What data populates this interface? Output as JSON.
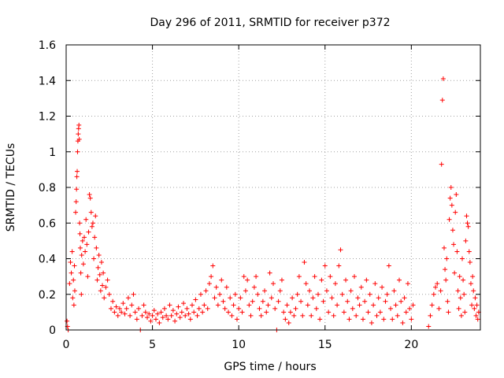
{
  "chart_data": {
    "type": "scatter",
    "title": "Day 296 of 2011, SRMTID for receiver p372",
    "xlabel": "GPS time / hours",
    "ylabel": "SRMTID / TECUs",
    "xlim": [
      0,
      24
    ],
    "ylim": [
      0,
      1.6
    ],
    "x_ticks": [
      0,
      5,
      10,
      15,
      20
    ],
    "x_tick_labels": [
      "0",
      "5",
      "10",
      "15",
      "20"
    ],
    "y_ticks": [
      0,
      0.2,
      0.4,
      0.6,
      0.8,
      1,
      1.2,
      1.4,
      1.6
    ],
    "y_tick_labels": [
      "0",
      "0.2",
      "0.4",
      "0.6",
      "0.8",
      "1",
      "1.2",
      "1.4",
      "1.6"
    ],
    "grid": true,
    "marker": "+",
    "color": "#ff0000",
    "series": [
      {
        "name": "SRMTID",
        "points": [
          [
            0.05,
            0.05
          ],
          [
            0.08,
            0.02
          ],
          [
            0.12,
            0.0
          ],
          [
            0.2,
            0.26
          ],
          [
            0.25,
            0.38
          ],
          [
            0.3,
            0.32
          ],
          [
            0.35,
            0.44
          ],
          [
            0.38,
            0.18
          ],
          [
            0.42,
            0.28
          ],
          [
            0.45,
            0.14
          ],
          [
            0.48,
            0.36
          ],
          [
            0.5,
            0.22
          ],
          [
            0.55,
            0.66
          ],
          [
            0.58,
            0.72
          ],
          [
            0.6,
            0.79
          ],
          [
            0.62,
            0.86
          ],
          [
            0.64,
            0.89
          ],
          [
            0.66,
            1.0
          ],
          [
            0.68,
            1.06
          ],
          [
            0.7,
            1.1
          ],
          [
            0.72,
            1.13
          ],
          [
            0.74,
            1.15
          ],
          [
            0.76,
            1.07
          ],
          [
            0.78,
            0.6
          ],
          [
            0.8,
            0.54
          ],
          [
            0.82,
            0.46
          ],
          [
            0.85,
            0.32
          ],
          [
            0.88,
            0.2
          ],
          [
            0.9,
            0.42
          ],
          [
            0.95,
            0.5
          ],
          [
            1.0,
            0.37
          ],
          [
            1.05,
            0.52
          ],
          [
            1.1,
            0.44
          ],
          [
            1.15,
            0.62
          ],
          [
            1.2,
            0.48
          ],
          [
            1.25,
            0.3
          ],
          [
            1.3,
            0.55
          ],
          [
            1.35,
            0.76
          ],
          [
            1.4,
            0.74
          ],
          [
            1.45,
            0.66
          ],
          [
            1.5,
            0.58
          ],
          [
            1.55,
            0.6
          ],
          [
            1.6,
            0.4
          ],
          [
            1.65,
            0.52
          ],
          [
            1.7,
            0.64
          ],
          [
            1.75,
            0.46
          ],
          [
            1.8,
            0.28
          ],
          [
            1.85,
            0.35
          ],
          [
            1.9,
            0.42
          ],
          [
            1.95,
            0.31
          ],
          [
            2.0,
            0.22
          ],
          [
            2.05,
            0.38
          ],
          [
            2.1,
            0.25
          ],
          [
            2.15,
            0.32
          ],
          [
            2.2,
            0.18
          ],
          [
            2.3,
            0.24
          ],
          [
            2.4,
            0.28
          ],
          [
            2.5,
            0.2
          ],
          [
            2.6,
            0.12
          ],
          [
            2.7,
            0.16
          ],
          [
            2.8,
            0.1
          ],
          [
            2.9,
            0.13
          ],
          [
            3.0,
            0.08
          ],
          [
            3.1,
            0.12
          ],
          [
            3.2,
            0.1
          ],
          [
            3.3,
            0.15
          ],
          [
            3.4,
            0.09
          ],
          [
            3.5,
            0.12
          ],
          [
            3.6,
            0.18
          ],
          [
            3.7,
            0.08
          ],
          [
            3.8,
            0.14
          ],
          [
            3.9,
            0.2
          ],
          [
            4.0,
            0.1
          ],
          [
            4.1,
            0.06
          ],
          [
            4.2,
            0.12
          ],
          [
            4.3,
            0.0
          ],
          [
            4.4,
            0.08
          ],
          [
            4.5,
            0.14
          ],
          [
            4.6,
            0.1
          ],
          [
            4.7,
            0.07
          ],
          [
            4.8,
            0.09
          ],
          [
            4.9,
            0.05
          ],
          [
            5.0,
            0.08
          ],
          [
            5.1,
            0.11
          ],
          [
            5.2,
            0.06
          ],
          [
            5.3,
            0.09
          ],
          [
            5.4,
            0.04
          ],
          [
            5.5,
            0.1
          ],
          [
            5.6,
            0.07
          ],
          [
            5.7,
            0.12
          ],
          [
            5.8,
            0.08
          ],
          [
            5.9,
            0.06
          ],
          [
            6.0,
            0.14
          ],
          [
            6.1,
            0.08
          ],
          [
            6.2,
            0.11
          ],
          [
            6.3,
            0.05
          ],
          [
            6.4,
            0.09
          ],
          [
            6.5,
            0.13
          ],
          [
            6.6,
            0.07
          ],
          [
            6.7,
            0.1
          ],
          [
            6.8,
            0.15
          ],
          [
            6.9,
            0.08
          ],
          [
            7.0,
            0.12
          ],
          [
            7.1,
            0.09
          ],
          [
            7.2,
            0.06
          ],
          [
            7.3,
            0.14
          ],
          [
            7.4,
            0.1
          ],
          [
            7.5,
            0.17
          ],
          [
            7.6,
            0.08
          ],
          [
            7.7,
            0.12
          ],
          [
            7.8,
            0.2
          ],
          [
            7.9,
            0.1
          ],
          [
            8.0,
            0.14
          ],
          [
            8.1,
            0.22
          ],
          [
            8.2,
            0.12
          ],
          [
            8.3,
            0.26
          ],
          [
            8.4,
            0.3
          ],
          [
            8.5,
            0.36
          ],
          [
            8.6,
            0.18
          ],
          [
            8.7,
            0.24
          ],
          [
            8.8,
            0.14
          ],
          [
            8.9,
            0.2
          ],
          [
            9.0,
            0.28
          ],
          [
            9.1,
            0.16
          ],
          [
            9.2,
            0.12
          ],
          [
            9.3,
            0.24
          ],
          [
            9.4,
            0.1
          ],
          [
            9.5,
            0.18
          ],
          [
            9.6,
            0.08
          ],
          [
            9.7,
            0.14
          ],
          [
            9.8,
            0.2
          ],
          [
            9.9,
            0.06
          ],
          [
            10.0,
            0.12
          ],
          [
            10.1,
            0.18
          ],
          [
            10.2,
            0.1
          ],
          [
            10.3,
            0.3
          ],
          [
            10.4,
            0.22
          ],
          [
            10.5,
            0.28
          ],
          [
            10.6,
            0.14
          ],
          [
            10.7,
            0.08
          ],
          [
            10.8,
            0.16
          ],
          [
            10.9,
            0.24
          ],
          [
            11.0,
            0.3
          ],
          [
            11.1,
            0.2
          ],
          [
            11.2,
            0.12
          ],
          [
            11.3,
            0.08
          ],
          [
            11.4,
            0.16
          ],
          [
            11.5,
            0.22
          ],
          [
            11.6,
            0.1
          ],
          [
            11.7,
            0.14
          ],
          [
            11.8,
            0.32
          ],
          [
            11.9,
            0.18
          ],
          [
            12.0,
            0.26
          ],
          [
            12.1,
            0.12
          ],
          [
            12.2,
            0.0
          ],
          [
            12.3,
            0.16
          ],
          [
            12.4,
            0.22
          ],
          [
            12.5,
            0.28
          ],
          [
            12.6,
            0.1
          ],
          [
            12.7,
            0.06
          ],
          [
            12.8,
            0.14
          ],
          [
            12.9,
            0.04
          ],
          [
            13.0,
            0.1
          ],
          [
            13.1,
            0.18
          ],
          [
            13.2,
            0.08
          ],
          [
            13.3,
            0.12
          ],
          [
            13.4,
            0.2
          ],
          [
            13.5,
            0.3
          ],
          [
            13.6,
            0.16
          ],
          [
            13.7,
            0.08
          ],
          [
            13.8,
            0.38
          ],
          [
            13.9,
            0.26
          ],
          [
            14.0,
            0.14
          ],
          [
            14.1,
            0.22
          ],
          [
            14.2,
            0.08
          ],
          [
            14.3,
            0.18
          ],
          [
            14.4,
            0.3
          ],
          [
            14.5,
            0.12
          ],
          [
            14.6,
            0.2
          ],
          [
            14.7,
            0.06
          ],
          [
            14.8,
            0.28
          ],
          [
            14.9,
            0.16
          ],
          [
            15.0,
            0.36
          ],
          [
            15.1,
            0.22
          ],
          [
            15.2,
            0.1
          ],
          [
            15.3,
            0.3
          ],
          [
            15.4,
            0.18
          ],
          [
            15.5,
            0.08
          ],
          [
            15.6,
            0.26
          ],
          [
            15.7,
            0.14
          ],
          [
            15.8,
            0.36
          ],
          [
            15.9,
            0.45
          ],
          [
            16.0,
            0.2
          ],
          [
            16.1,
            0.1
          ],
          [
            16.2,
            0.28
          ],
          [
            16.3,
            0.16
          ],
          [
            16.4,
            0.06
          ],
          [
            16.5,
            0.22
          ],
          [
            16.6,
            0.12
          ],
          [
            16.7,
            0.3
          ],
          [
            16.8,
            0.08
          ],
          [
            16.9,
            0.18
          ],
          [
            17.0,
            0.14
          ],
          [
            17.1,
            0.24
          ],
          [
            17.2,
            0.06
          ],
          [
            17.3,
            0.16
          ],
          [
            17.4,
            0.28
          ],
          [
            17.5,
            0.1
          ],
          [
            17.6,
            0.2
          ],
          [
            17.7,
            0.04
          ],
          [
            17.8,
            0.14
          ],
          [
            17.9,
            0.26
          ],
          [
            18.0,
            0.08
          ],
          [
            18.1,
            0.18
          ],
          [
            18.2,
            0.1
          ],
          [
            18.3,
            0.24
          ],
          [
            18.4,
            0.06
          ],
          [
            18.5,
            0.16
          ],
          [
            18.6,
            0.2
          ],
          [
            18.7,
            0.36
          ],
          [
            18.8,
            0.12
          ],
          [
            18.9,
            0.06
          ],
          [
            19.0,
            0.22
          ],
          [
            19.1,
            0.14
          ],
          [
            19.2,
            0.08
          ],
          [
            19.3,
            0.28
          ],
          [
            19.4,
            0.16
          ],
          [
            19.5,
            0.04
          ],
          [
            19.6,
            0.18
          ],
          [
            19.7,
            0.1
          ],
          [
            19.8,
            0.26
          ],
          [
            19.9,
            0.12
          ],
          [
            20.0,
            0.06
          ],
          [
            20.1,
            0.14
          ],
          [
            21.0,
            0.02
          ],
          [
            21.1,
            0.08
          ],
          [
            21.2,
            0.14
          ],
          [
            21.3,
            0.2
          ],
          [
            21.4,
            0.24
          ],
          [
            21.5,
            0.26
          ],
          [
            21.6,
            0.12
          ],
          [
            21.7,
            0.22
          ],
          [
            21.75,
            0.93
          ],
          [
            21.8,
            1.29
          ],
          [
            21.85,
            1.41
          ],
          [
            21.9,
            0.46
          ],
          [
            21.95,
            0.34
          ],
          [
            22.0,
            0.28
          ],
          [
            22.05,
            0.4
          ],
          [
            22.1,
            0.16
          ],
          [
            22.15,
            0.1
          ],
          [
            22.2,
            0.62
          ],
          [
            22.25,
            0.74
          ],
          [
            22.3,
            0.8
          ],
          [
            22.35,
            0.7
          ],
          [
            22.4,
            0.56
          ],
          [
            22.45,
            0.48
          ],
          [
            22.5,
            0.32
          ],
          [
            22.55,
            0.66
          ],
          [
            22.6,
            0.76
          ],
          [
            22.65,
            0.44
          ],
          [
            22.7,
            0.22
          ],
          [
            22.75,
            0.12
          ],
          [
            22.8,
            0.3
          ],
          [
            22.85,
            0.18
          ],
          [
            22.9,
            0.08
          ],
          [
            22.95,
            0.4
          ],
          [
            23.0,
            0.28
          ],
          [
            23.05,
            0.2
          ],
          [
            23.1,
            0.1
          ],
          [
            23.15,
            0.5
          ],
          [
            23.2,
            0.64
          ],
          [
            23.25,
            0.6
          ],
          [
            23.3,
            0.58
          ],
          [
            23.35,
            0.44
          ],
          [
            23.4,
            0.38
          ],
          [
            23.45,
            0.26
          ],
          [
            23.5,
            0.14
          ],
          [
            23.55,
            0.3
          ],
          [
            23.6,
            0.22
          ],
          [
            23.65,
            0.12
          ],
          [
            23.7,
            0.18
          ],
          [
            23.75,
            0.08
          ],
          [
            23.8,
            0.14
          ],
          [
            23.85,
            0.06
          ],
          [
            23.9,
            0.1
          ]
        ]
      }
    ]
  }
}
